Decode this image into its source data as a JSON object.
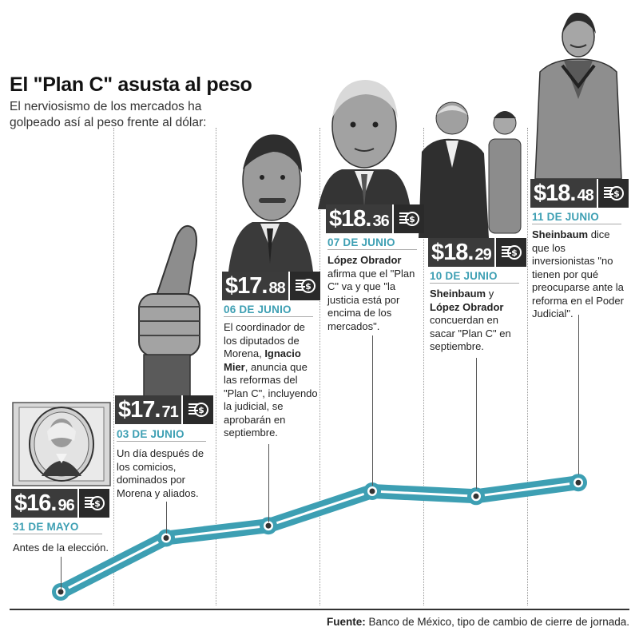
{
  "title": "El \"Plan C\" asusta al peso",
  "subtitle": "El nerviosismo de los mercados ha golpeado así al peso frente al dólar:",
  "source_label": "Fuente:",
  "source_text": " Banco de México, tipo de cambio de cierre de jornada.",
  "colors": {
    "line": "#3d9fb3",
    "label_bg": "#3b3b3b",
    "date": "#3d9fb3"
  },
  "icons": {
    "price_icon": "money-coin-icon"
  },
  "events": [
    {
      "price_main": "$16.",
      "price_dec": "96",
      "date": "31 DE MAYO",
      "desc": "Antes de la elección.",
      "portrait": "banknote-washington-image"
    },
    {
      "price_main": "$17.",
      "price_dec": "71",
      "date": "03 DE JUNIO",
      "desc": "Un día después de los comicios, dominados por Morena y aliados.",
      "portrait": "thumbs-up-image"
    },
    {
      "price_main": "$17.",
      "price_dec": "88",
      "date": "06 DE JUNIO",
      "desc_pre": "El coordinador de los diputados de Morena, ",
      "desc_bold": "Ignacio Mier",
      "desc_post": ", anuncia que las reformas del \"Plan C\", incluyendo la judicial, se aprobarán en septiembre.",
      "portrait": "ignacio-mier-image"
    },
    {
      "price_main": "$18.",
      "price_dec": "36",
      "date": "07 DE JUNIO",
      "desc_bold": "López Obrador",
      "desc_post": " afirma que el \"Plan C\" va y que \"la justicia está por encima de los mercados\".",
      "portrait": "lopez-obrador-image"
    },
    {
      "price_main": "$18.",
      "price_dec": "29",
      "date": "10 DE JUNIO",
      "desc_bold": "Sheinbaum",
      "desc_mid": " y ",
      "desc_bold2": "López Obrador",
      "desc_post": " concuerdan en sacar \"Plan C\" en septiembre.",
      "portrait": "sheinbaum-lopez-obrador-image"
    },
    {
      "price_main": "$18.",
      "price_dec": "48",
      "date": "11 DE JUNIO",
      "desc_bold": "Sheinbaum",
      "desc_post": " dice que los inversionistas \"no tienen por qué preocuparse ante la reforma en el Poder Judicial\".",
      "portrait": "sheinbaum-image"
    }
  ],
  "chart_data": {
    "type": "line",
    "title": "El \"Plan C\" asusta al peso",
    "subtitle": "El nerviosismo de los mercados ha golpeado así al peso frente al dólar:",
    "xlabel": "",
    "ylabel": "",
    "categories": [
      "31 DE MAYO",
      "03 DE JUNIO",
      "06 DE JUNIO",
      "07 DE JUNIO",
      "10 DE JUNIO",
      "11 DE JUNIO"
    ],
    "series": [
      {
        "values": [
          16.96,
          17.71,
          17.88,
          18.36,
          18.29,
          18.48
        ]
      }
    ],
    "grid": false,
    "legend": "none"
  }
}
